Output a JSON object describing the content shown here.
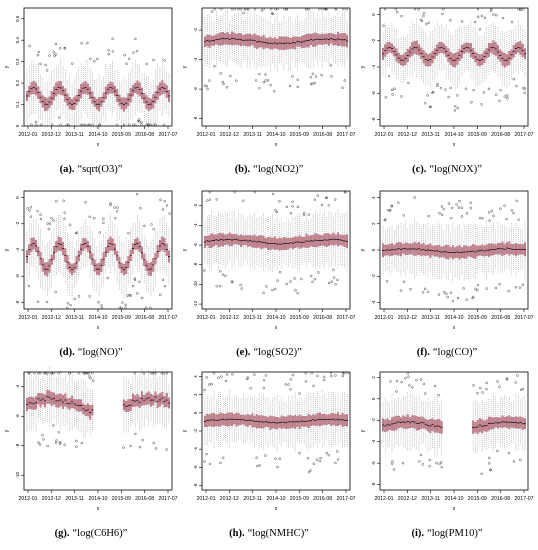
{
  "figure": {
    "colors": {
      "box_fill": "#c9828f",
      "median_line": "#000000",
      "whisker": "#888888",
      "outlier": "#222222"
    },
    "x_tick_labels": [
      "2012-01",
      "2012-12",
      "2013-11",
      "2014-10",
      "2015-09",
      "2016-08",
      "2017-07"
    ],
    "x_axis_label": "x",
    "y_axis_label": "y"
  },
  "panels": [
    {
      "label": "(a).",
      "caption": "“sqrt(O3)”"
    },
    {
      "label": "(b).",
      "caption": "“log(NO2)”"
    },
    {
      "label": "(c).",
      "caption": "“log(NOX)”"
    },
    {
      "label": "(d).",
      "caption": "“log(NO)”"
    },
    {
      "label": "(e).",
      "caption": "“log(SO2)”"
    },
    {
      "label": "(f).",
      "caption": "“log(CO)”"
    },
    {
      "label": "(g).",
      "caption": "“log(C6H6)”"
    },
    {
      "label": "(h).",
      "caption": "“log(NMHC)”"
    },
    {
      "label": "(i).",
      "caption": "“log(PM10)”"
    }
  ],
  "chart_data": [
    {
      "type": "box",
      "title": "sqrt(O3)",
      "xlabel": "x",
      "ylabel": "y",
      "x_ticks": [
        "2012-01",
        "2012-12",
        "2013-11",
        "2014-10",
        "2015-09",
        "2016-08",
        "2017-07"
      ],
      "yticks": [
        0.0,
        0.1,
        0.2,
        0.3,
        0.4,
        0.5
      ],
      "ylim": [
        0.0,
        0.55
      ],
      "median_range": [
        0.1,
        0.18
      ],
      "seasonal": true
    },
    {
      "type": "box",
      "title": "log(NO2)",
      "xlabel": "x",
      "ylabel": "y",
      "x_ticks": [
        "2012-01",
        "2012-12",
        "2013-11",
        "2014-10",
        "2015-09",
        "2016-08",
        "2017-07"
      ],
      "yticks": [
        -8,
        -6,
        -4,
        -2
      ],
      "ylim": [
        -8.5,
        -0.5
      ],
      "median_range": [
        -3.0,
        -2.5
      ],
      "seasonal": false
    },
    {
      "type": "box",
      "title": "log(NOX)",
      "xlabel": "x",
      "ylabel": "y",
      "x_ticks": [
        "2012-01",
        "2012-12",
        "2013-11",
        "2014-10",
        "2015-09",
        "2016-08",
        "2017-07"
      ],
      "yticks": [
        -8,
        -6,
        -4,
        -2,
        0
      ],
      "ylim": [
        -8.5,
        0.5
      ],
      "median_range": [
        -3.5,
        -2.5
      ],
      "seasonal": true
    },
    {
      "type": "box",
      "title": "log(NO)",
      "xlabel": "x",
      "ylabel": "y",
      "x_ticks": [
        "2012-01",
        "2012-12",
        "2013-11",
        "2014-10",
        "2015-09",
        "2016-08",
        "2017-07"
      ],
      "yticks": [
        -8,
        -6,
        -4,
        -2,
        0
      ],
      "ylim": [
        -8.5,
        0.5
      ],
      "median_range": [
        -5.5,
        -3.5
      ],
      "seasonal": true
    },
    {
      "type": "box",
      "title": "log(SO2)",
      "xlabel": "x",
      "ylabel": "y",
      "x_ticks": [
        "2012-01",
        "2012-12",
        "2013-11",
        "2014-10",
        "2015-09",
        "2016-08",
        "2017-07"
      ],
      "yticks": [
        -12,
        -10,
        -8,
        -6,
        -4,
        -2
      ],
      "ylim": [
        -12.5,
        -0.5
      ],
      "median_range": [
        -6.0,
        -5.3
      ],
      "seasonal": false
    },
    {
      "type": "box",
      "title": "log(CO)",
      "xlabel": "x",
      "ylabel": "y",
      "x_ticks": [
        "2012-01",
        "2012-12",
        "2013-11",
        "2014-10",
        "2015-09",
        "2016-08",
        "2017-07"
      ],
      "yticks": [
        -4,
        -2,
        0,
        2,
        4
      ],
      "ylim": [
        -4.5,
        4.5
      ],
      "median_range": [
        -0.3,
        0.2
      ],
      "seasonal": false
    },
    {
      "type": "box",
      "title": "log(C6H6)",
      "xlabel": "x",
      "ylabel": "y",
      "x_ticks": [
        "2012-01",
        "2012-12",
        "2013-11",
        "2014-10",
        "2015-09",
        "2016-08",
        "2017-07"
      ],
      "yticks": [
        -10,
        -8,
        -6,
        -4
      ],
      "ylim": [
        -11,
        -3
      ],
      "median_range": [
        -6.0,
        -4.5
      ],
      "gap": [
        0.47,
        0.68
      ],
      "seasonal": false
    },
    {
      "type": "box",
      "title": "log(NMHC)",
      "xlabel": "x",
      "ylabel": "y",
      "x_ticks": [
        "2012-01",
        "2012-12",
        "2013-11",
        "2014-10",
        "2015-09",
        "2016-08",
        "2017-07"
      ],
      "yticks": [
        -8,
        -6,
        -4,
        -2,
        0,
        2,
        4
      ],
      "ylim": [
        -8.5,
        4.5
      ],
      "median_range": [
        -1.2,
        -0.6
      ],
      "seasonal": false
    },
    {
      "type": "box",
      "title": "log(PM10)",
      "xlabel": "x",
      "ylabel": "y",
      "x_ticks": [
        "2012-01",
        "2012-12",
        "2013-11",
        "2014-10",
        "2015-09",
        "2016-08",
        "2017-07"
      ],
      "yticks": [
        -8,
        -6,
        -4,
        -2,
        0,
        2
      ],
      "ylim": [
        -8.5,
        2.5
      ],
      "median_range": [
        -3.0,
        -2.0
      ],
      "gap": [
        0.42,
        0.62
      ],
      "seasonal": false
    }
  ]
}
